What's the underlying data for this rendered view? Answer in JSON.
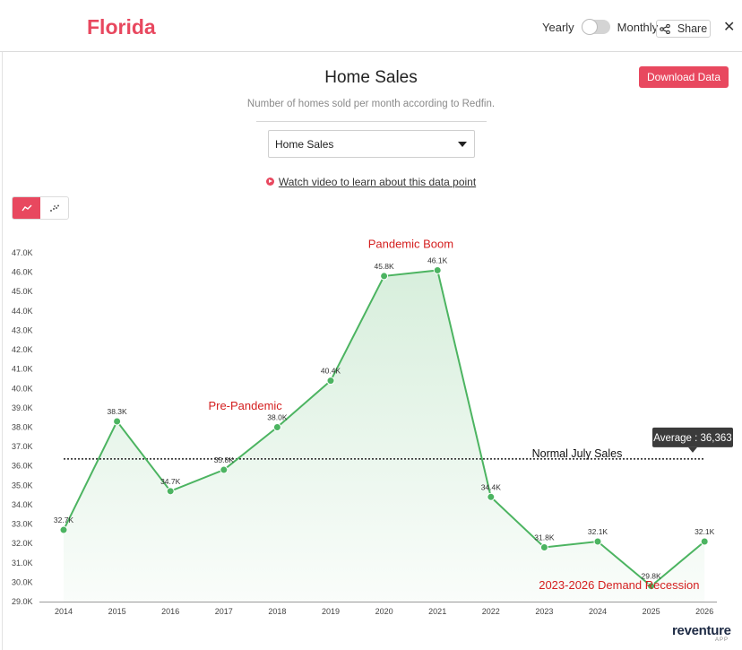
{
  "header": {
    "state_title": "Florida",
    "toggle_left_label": "Yearly",
    "toggle_right_label": "Monthly",
    "share_label": "Share",
    "close_label": "✕"
  },
  "panel": {
    "title": "Home Sales",
    "download_label": "Download Data",
    "subtitle": "Number of homes sold per month according to Redfin.",
    "dropdown_value": "Home Sales",
    "video_link": "Watch video to learn about this data point"
  },
  "view_toggle": {
    "options": [
      "line-chart-icon",
      "scatter-chart-icon"
    ],
    "active": "line-chart-icon"
  },
  "brand": {
    "name": "reventure",
    "sub": "APP"
  },
  "colors": {
    "accent": "#e8485f",
    "line": "#4cb461",
    "annotation": "#d41f1f"
  },
  "chart_data": {
    "type": "area",
    "x": [
      "2014",
      "2015",
      "2016",
      "2017",
      "2018",
      "2019",
      "2020",
      "2021",
      "2022",
      "2023",
      "2024",
      "2025",
      "2026"
    ],
    "values": [
      32700,
      38300,
      34700,
      35800,
      38000,
      40400,
      45800,
      46100,
      34400,
      31800,
      32100,
      29800,
      32100
    ],
    "data_labels": [
      "32.7K",
      "38.3K",
      "34.7K",
      "35.8K",
      "38.0K",
      "40.4K",
      "45.8K",
      "46.1K",
      "34.4K",
      "31.8K",
      "32.1K",
      "29.8K",
      "32.1K"
    ],
    "ylim": [
      29000,
      47000
    ],
    "yticks": [
      29000,
      30000,
      31000,
      32000,
      33000,
      34000,
      35000,
      36000,
      37000,
      38000,
      39000,
      40000,
      41000,
      42000,
      43000,
      44000,
      45000,
      46000,
      47000
    ],
    "ytick_labels": [
      "29.0K",
      "30.0K",
      "31.0K",
      "32.0K",
      "33.0K",
      "34.0K",
      "35.0K",
      "36.0K",
      "37.0K",
      "38.0K",
      "39.0K",
      "40.0K",
      "41.0K",
      "42.0K",
      "43.0K",
      "44.0K",
      "45.0K",
      "46.0K",
      "47.0K"
    ],
    "average": {
      "value": 36363,
      "label": "Average : 36,363"
    },
    "reference_label": "Normal July Sales",
    "annotations": [
      {
        "text": "Pandemic Boom",
        "x": "2020.5",
        "y": 47250
      },
      {
        "text": "Pre-Pandemic",
        "x": "2017.4",
        "y": 38900
      },
      {
        "text": "2023-2026 Demand Recession",
        "x": "2024.4",
        "y": 29650
      }
    ],
    "grid": false
  }
}
